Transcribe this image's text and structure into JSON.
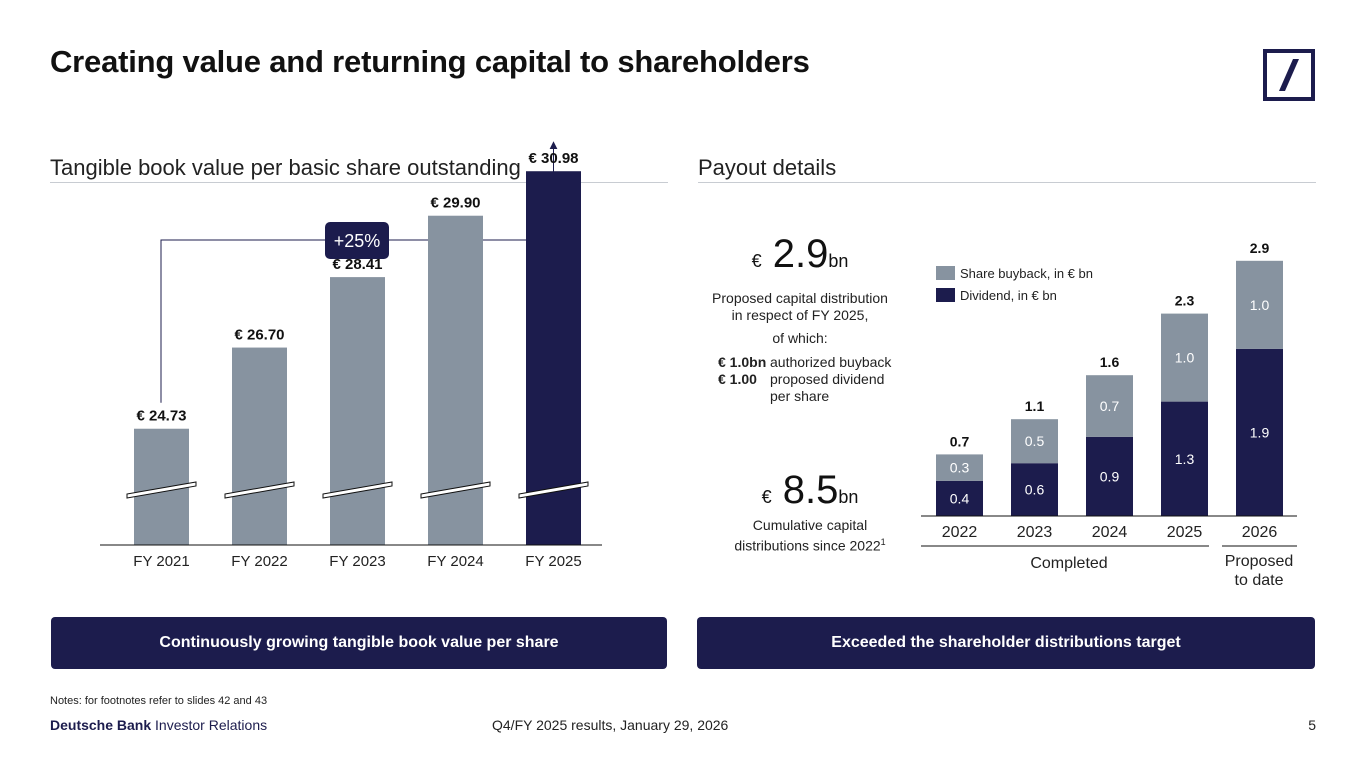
{
  "title": "Creating value and returning capital to shareholders",
  "left_section_title": "Tangible book value per basic share outstanding",
  "right_section_title": "Payout details",
  "left_chart_data": {
    "type": "bar",
    "categories": [
      "FY 2021",
      "FY 2022",
      "FY 2023",
      "FY 2024",
      "FY 2025"
    ],
    "values": [
      24.73,
      26.7,
      28.41,
      29.9,
      30.98
    ],
    "value_labels": [
      "€ 24.73",
      "€ 26.70",
      "€ 28.41",
      "€ 29.90",
      "€ 30.98"
    ],
    "highlight_index": 4,
    "growth_label": "+25%",
    "axis_break": true,
    "colors": {
      "regular": "#8793a0",
      "highlight": "#1c1c4d"
    }
  },
  "chart_data": {
    "type": "bar",
    "stacked": true,
    "categories": [
      "2022",
      "2023",
      "2024",
      "2025",
      "2026"
    ],
    "series": [
      {
        "name": "Dividend, in € bn",
        "values": [
          0.4,
          0.6,
          0.9,
          1.3,
          1.9
        ],
        "color": "#1c1c4d"
      },
      {
        "name": "Share buyback, in € bn",
        "values": [
          0.3,
          0.5,
          0.7,
          1.0,
          1.0
        ],
        "color": "#8793a0"
      }
    ],
    "totals": [
      "0.7",
      "1.1",
      "1.6",
      "2.3",
      "2.9"
    ],
    "labels": {
      "Dividend": [
        "0.4",
        "0.6",
        "0.9",
        "1.3",
        "1.9"
      ],
      "Share buyback": [
        "0.3",
        "0.5",
        "0.7",
        "1.0",
        "1.0"
      ]
    },
    "legend": [
      "Share buyback, in € bn",
      "Dividend, in € bn"
    ],
    "groups": {
      "completed": "Completed",
      "proposed": "Proposed to date"
    }
  },
  "kpi1": {
    "currency": "€",
    "value": "2.9",
    "unit": "bn",
    "line1": "Proposed capital distribution",
    "line2": "in respect of FY 2025,",
    "of_which": "of which:",
    "buyback_amount": "€ 1.0bn",
    "buyback_text": "authorized buyback",
    "dividend_amount": "€ 1.00",
    "dividend_text1": "proposed dividend",
    "dividend_text2": "per share"
  },
  "kpi2": {
    "currency": "€",
    "value": "8.5",
    "unit": "bn",
    "line1": "Cumulative capital",
    "line2": "distributions since 2022",
    "footnote": "1"
  },
  "banners": {
    "left": "Continuously growing tangible book value per share",
    "right": "Exceeded the shareholder distributions target"
  },
  "notes": "Notes: for footnotes refer to slides 42 and 43",
  "footer": {
    "brand_bold": "Deutsche Bank",
    "brand_light": "Investor Relations",
    "center": "Q4/FY 2025 results, January 29, 2026",
    "page": "5"
  },
  "colors": {
    "navy": "#1c1c4d",
    "grey": "#8793a0"
  }
}
